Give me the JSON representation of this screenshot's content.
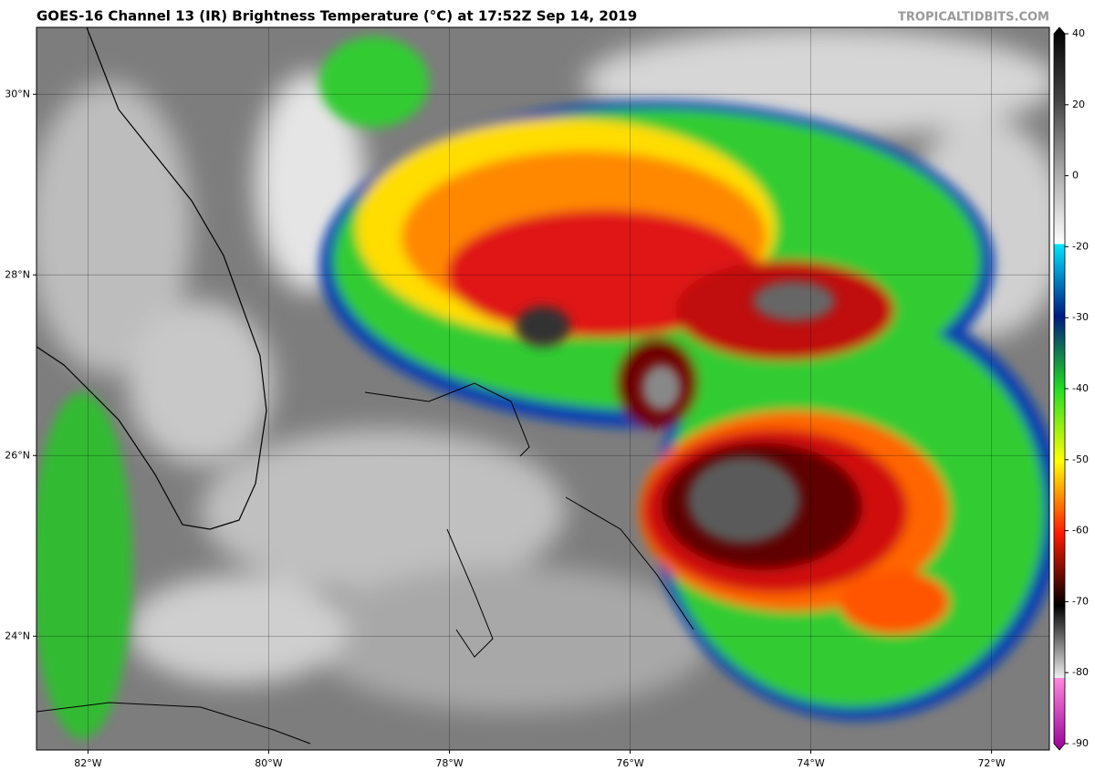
{
  "header": {
    "title": "GOES-16 Channel 13 (IR) Brightness Temperature (°C) at 17:52Z Sep 14, 2019",
    "watermark": "TROPICALTIDBITS.COM"
  },
  "map": {
    "xlim": [
      -82.57,
      -71.36
    ],
    "ylim": [
      22.74,
      30.74
    ],
    "xticks": [
      {
        "value": -82,
        "label": "82°W"
      },
      {
        "value": -80,
        "label": "80°W"
      },
      {
        "value": -78,
        "label": "78°W"
      },
      {
        "value": -76,
        "label": "76°W"
      },
      {
        "value": -74,
        "label": "74°W"
      },
      {
        "value": -72,
        "label": "72°W"
      }
    ],
    "yticks": [
      {
        "value": 24,
        "label": "24°N"
      },
      {
        "value": 26,
        "label": "26°N"
      },
      {
        "value": 28,
        "label": "28°N"
      },
      {
        "value": 30,
        "label": "30°N"
      }
    ],
    "grid": true
  },
  "colorbar": {
    "lim": [
      -90,
      40
    ],
    "ticks": [
      40,
      20,
      0,
      -20,
      -30,
      -40,
      -50,
      -60,
      -70,
      -80,
      -90
    ]
  }
}
